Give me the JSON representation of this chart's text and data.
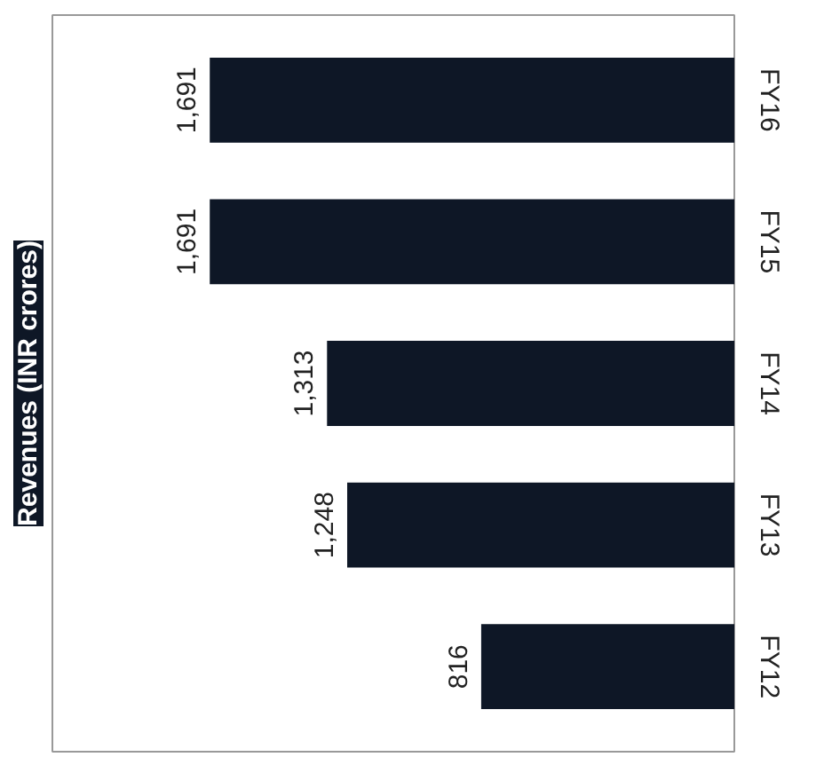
{
  "chart_data": {
    "type": "bar",
    "orientation": "horizontal",
    "title": "Revenues (INR crores)",
    "categories": [
      "FY16",
      "FY15",
      "FY14",
      "FY13",
      "FY12"
    ],
    "values": [
      1691,
      1691,
      1313,
      1248,
      816
    ],
    "value_labels": [
      "1,691",
      "1,691",
      "1,313",
      "1,248",
      "816"
    ],
    "color": "#0e1726",
    "grid": false
  }
}
